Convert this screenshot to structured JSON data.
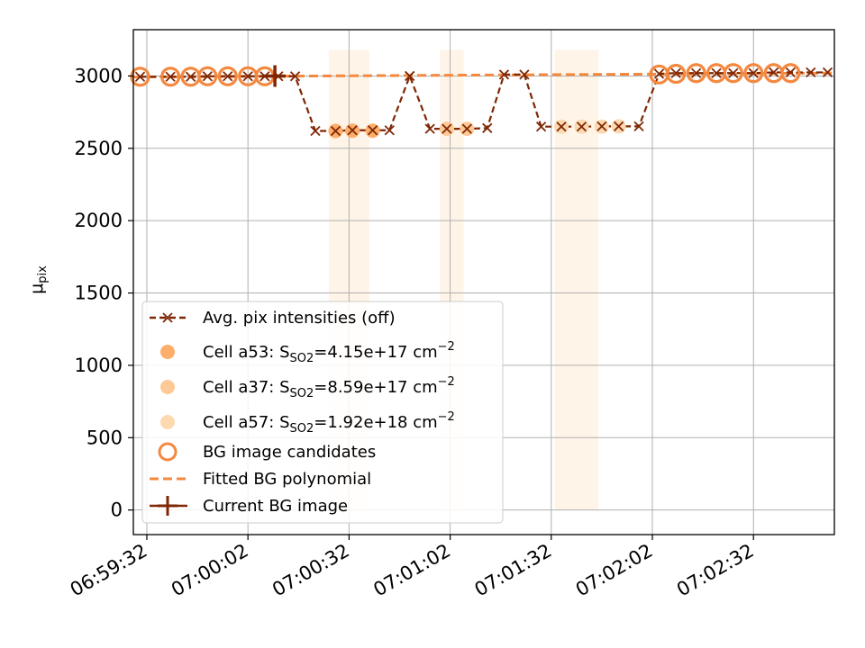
{
  "chart_data": {
    "type": "line",
    "title": "",
    "xlabel": "",
    "ylabel": "μ",
    "ylabel_sub": "pix",
    "ylim": [
      -170,
      3320
    ],
    "xlim_seconds": [
      -4,
      204
    ],
    "grid": true,
    "legend_position": "center-left",
    "x_tick_labels": [
      "06:59:32",
      "07:00:02",
      "07:00:32",
      "07:01:02",
      "07:01:32",
      "07:02:02",
      "07:02:32"
    ],
    "x_tick_seconds": [
      0,
      30,
      60,
      90,
      120,
      150,
      180
    ],
    "y_ticks": [
      0,
      500,
      1000,
      1500,
      2000,
      2500,
      3000
    ],
    "y_tick_labels": [
      "0",
      "500",
      "1000",
      "1500",
      "2000",
      "2500",
      "3000"
    ],
    "colors": {
      "avg": "#7f2704",
      "cell_a53": "#fdae6b",
      "cell_a37": "#fdc997",
      "cell_a57": "#fdd9b1",
      "bg_candidates": "#f4883f",
      "fit": "#f4883f",
      "current": "#7f2704",
      "span": "#fdd9b1"
    },
    "series": [
      {
        "name": "Avg. pix intensities (off)",
        "style": "dashed-x",
        "x": [
          -2,
          7,
          13,
          18,
          24,
          30,
          35,
          39,
          44,
          50,
          56,
          61,
          67,
          72,
          78,
          84,
          89,
          95,
          101,
          106,
          112,
          117,
          123,
          129,
          135,
          140,
          146,
          152,
          157,
          163,
          169,
          174,
          180,
          186,
          191,
          197,
          202
        ],
        "y": [
          2995,
          2995,
          2995,
          2998,
          2998,
          2998,
          2998,
          2998,
          2998,
          2620,
          2620,
          2625,
          2625,
          2625,
          3000,
          2635,
          2635,
          2635,
          2640,
          3010,
          3010,
          2650,
          2650,
          2650,
          2652,
          2652,
          2652,
          3015,
          3020,
          3020,
          3020,
          3020,
          3020,
          3025,
          3025,
          3025,
          3025
        ]
      },
      {
        "name": "Cell a53: S",
        "sub": "SO2",
        "value": "=4.15e+17 cm",
        "sup": "−2",
        "style": "filled-circle",
        "x": [
          56,
          61,
          67
        ],
        "y": [
          2620,
          2622,
          2622
        ]
      },
      {
        "name": "Cell a37: S",
        "sub": "SO2",
        "value": "=8.59e+17 cm",
        "sup": "−2",
        "style": "filled-circle",
        "x": [
          89,
          95
        ],
        "y": [
          2635,
          2635
        ]
      },
      {
        "name": "Cell a57: S",
        "sub": "SO2",
        "value": "=1.92e+18 cm",
        "sup": "−2",
        "style": "filled-circle",
        "x": [
          123,
          129,
          135,
          140
        ],
        "y": [
          2650,
          2650,
          2650,
          2652
        ]
      },
      {
        "name": "BG image candidates",
        "style": "open-circle",
        "x": [
          -2,
          7,
          13,
          18,
          24,
          30,
          35,
          152,
          157,
          163,
          169,
          174,
          180,
          186,
          191
        ],
        "y": [
          2995,
          2995,
          2995,
          2998,
          2998,
          2998,
          2998,
          3010,
          3015,
          3020,
          3020,
          3020,
          3020,
          3020,
          3020
        ]
      },
      {
        "name": "Fitted BG polynomial",
        "style": "dashed-line",
        "x": [
          -4,
          204
        ],
        "y": [
          2993,
          3020
        ]
      },
      {
        "name": "Current BG image",
        "style": "plus",
        "x": [
          38
        ],
        "y": [
          3000
        ]
      }
    ],
    "spans": [
      {
        "x0": 54,
        "x1": 66,
        "y0": 0,
        "y1": 3180
      },
      {
        "x0": 87,
        "x1": 94,
        "y0": 0,
        "y1": 3180
      },
      {
        "x0": 121,
        "x1": 134,
        "y0": 0,
        "y1": 3180
      }
    ]
  }
}
